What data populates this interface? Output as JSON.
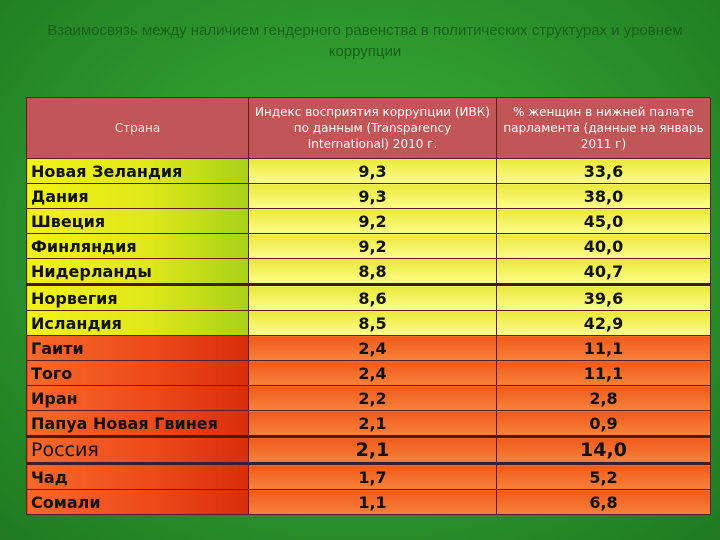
{
  "title": "Взаимосвязь между наличием гендерного равенства в политических структурах и уровнем коррупции",
  "headers": {
    "country": "Страна",
    "cpi": "Индекс восприятия коррупции (ИВК) по данным (Transparency International) 2010 г.",
    "women": "% женщин в нижней палате парламента (данные на январь 2011 г)"
  },
  "rows": [
    {
      "country": "Новая Зеландия",
      "cpi": "9,3",
      "women": "33,6"
    },
    {
      "country": "Дания",
      "cpi": "9,3",
      "women": "38,0"
    },
    {
      "country": "Швеция",
      "cpi": "9,2",
      "women": "45,0"
    },
    {
      "country": "Финляндия",
      "cpi": "9,2",
      "women": "40,0"
    },
    {
      "country": "Нидерланды",
      "cpi": "8,8",
      "women": "40,7"
    },
    {
      "country": "Норвегия",
      "cpi": "8,6",
      "women": "39,6"
    },
    {
      "country": "Исландия",
      "cpi": "8,5",
      "women": "42,9"
    },
    {
      "country": "Гаити",
      "cpi": "2,4",
      "women": "11,1"
    },
    {
      "country": "Того",
      "cpi": "2,4",
      "women": "11,1"
    },
    {
      "country": "Иран",
      "cpi": "2,2",
      "women": "2,8"
    },
    {
      "country": "Папуа Новая Гвинея",
      "cpi": "2,1",
      "women": "0,9"
    },
    {
      "country": "Россия",
      "cpi": "2,1",
      "women": "14,0"
    },
    {
      "country": "Чад",
      "cpi": "1,7",
      "women": "5,2"
    },
    {
      "country": "Сомали",
      "cpi": "1,1",
      "women": "6,8"
    }
  ]
}
